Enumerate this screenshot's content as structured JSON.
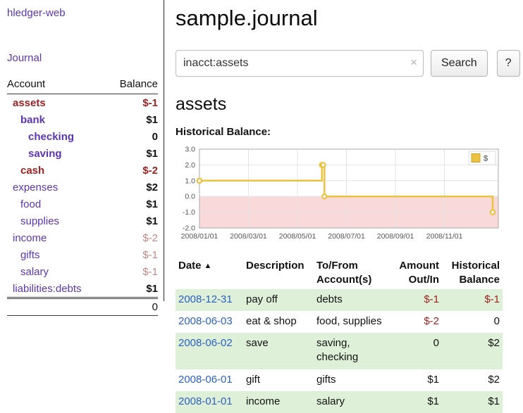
{
  "colors": {
    "link_purple": "#5b35b5",
    "negative": "#9e2121",
    "negative_muted": "#c98585",
    "date_link_blue": "#2a5fc4",
    "row_green": "#dff0d8",
    "chart_line_gold": "#edc240",
    "chart_negative_pink": "#f9d9d9"
  },
  "sidebar": {
    "app_title": "hledger-web",
    "nav": {
      "journal": "Journal"
    },
    "accounts": {
      "col_account": "Account",
      "col_balance": "Balance",
      "rows": [
        {
          "name": "assets",
          "balance": "$-1",
          "indent": 0,
          "bold": true,
          "name_negative": true,
          "balance_negative": true,
          "balance_muted": false
        },
        {
          "name": "bank",
          "balance": "$1",
          "indent": 1,
          "bold": true,
          "name_negative": false,
          "balance_negative": false,
          "balance_muted": false
        },
        {
          "name": "checking",
          "balance": "0",
          "indent": 2,
          "bold": true,
          "name_negative": false,
          "balance_negative": false,
          "balance_muted": false
        },
        {
          "name": "saving",
          "balance": "$1",
          "indent": 2,
          "bold": true,
          "name_negative": false,
          "balance_negative": false,
          "balance_muted": false
        },
        {
          "name": "cash",
          "balance": "$-2",
          "indent": 1,
          "bold": true,
          "name_negative": true,
          "balance_negative": true,
          "balance_muted": false
        },
        {
          "name": "expenses",
          "balance": "$2",
          "indent": 0,
          "bold": false,
          "name_negative": false,
          "balance_negative": false,
          "balance_muted": false
        },
        {
          "name": "food",
          "balance": "$1",
          "indent": 1,
          "bold": false,
          "name_negative": false,
          "balance_negative": false,
          "balance_muted": false
        },
        {
          "name": "supplies",
          "balance": "$1",
          "indent": 1,
          "bold": false,
          "name_negative": false,
          "balance_negative": false,
          "balance_muted": false
        },
        {
          "name": "income",
          "balance": "$-2",
          "indent": 0,
          "bold": false,
          "name_negative": false,
          "balance_negative": true,
          "balance_muted": true
        },
        {
          "name": "gifts",
          "balance": "$-1",
          "indent": 1,
          "bold": false,
          "name_negative": false,
          "balance_negative": true,
          "balance_muted": true
        },
        {
          "name": "salary",
          "balance": "$-1",
          "indent": 1,
          "bold": false,
          "name_negative": false,
          "balance_negative": true,
          "balance_muted": true
        },
        {
          "name": "liabilities:debts",
          "balance": "$1",
          "indent": 0,
          "bold": false,
          "name_negative": false,
          "balance_negative": false,
          "balance_muted": false
        }
      ],
      "total": "0"
    }
  },
  "main": {
    "title": "sample.journal",
    "search": {
      "value": "inacct:assets",
      "clear_label": "×",
      "search_button": "Search",
      "help_button": "?"
    },
    "account_heading": "assets"
  },
  "chart_data": {
    "type": "line",
    "title": "Historical Balance:",
    "xlabel": "",
    "ylabel": "",
    "grid": true,
    "ylim": [
      -2,
      3
    ],
    "xlim_months": [
      0,
      12.2
    ],
    "y_ticks": [
      3,
      2,
      1,
      0,
      -1,
      -2
    ],
    "x_ticks": [
      {
        "m": 0,
        "label": "2008/01/01"
      },
      {
        "m": 2,
        "label": "2008/03/01"
      },
      {
        "m": 4,
        "label": "2008/05/01"
      },
      {
        "m": 6,
        "label": "2008/07/01"
      },
      {
        "m": 8,
        "label": "2008/09/01"
      },
      {
        "m": 10,
        "label": "2008/11/01"
      }
    ],
    "legend": {
      "position": "top-right"
    },
    "negative_region": {
      "from": 0,
      "to": -2,
      "color": "#f9d9d9"
    },
    "series": [
      {
        "name": "$",
        "color": "#edc240",
        "step": true,
        "points": [
          {
            "date": "2008-01-01",
            "m": 0,
            "v": 1
          },
          {
            "date": "2008-06-01",
            "m": 5.0,
            "v": 2
          },
          {
            "date": "2008-06-02",
            "m": 5.05,
            "v": 2
          },
          {
            "date": "2008-06-03",
            "m": 5.1,
            "v": 0
          },
          {
            "date": "2008-12-31",
            "m": 11.97,
            "v": -1
          }
        ]
      }
    ]
  },
  "register": {
    "headers": {
      "date": "Date",
      "description": "Description",
      "account": "To/From Account(s)",
      "amount": "Amount Out/In",
      "balance": "Historical Balance"
    },
    "sort_icon": "▲",
    "rows": [
      {
        "date": "2008-12-31",
        "description": "pay off",
        "account": "debts",
        "amount": "$-1",
        "balance": "$-1",
        "amount_negative": true,
        "balance_negative": true,
        "shaded": true
      },
      {
        "date": "2008-06-03",
        "description": "eat & shop",
        "account": "food, supplies",
        "amount": "$-2",
        "balance": "0",
        "amount_negative": true,
        "balance_negative": false,
        "shaded": false
      },
      {
        "date": "2008-06-02",
        "description": "save",
        "account": "saving, checking",
        "amount": "0",
        "balance": "$2",
        "amount_negative": false,
        "balance_negative": false,
        "shaded": true
      },
      {
        "date": "2008-06-01",
        "description": "gift",
        "account": "gifts",
        "amount": "$1",
        "balance": "$2",
        "amount_negative": false,
        "balance_negative": false,
        "shaded": false
      },
      {
        "date": "2008-01-01",
        "description": "income",
        "account": "salary",
        "amount": "$1",
        "balance": "$1",
        "amount_negative": false,
        "balance_negative": false,
        "shaded": true
      }
    ]
  }
}
